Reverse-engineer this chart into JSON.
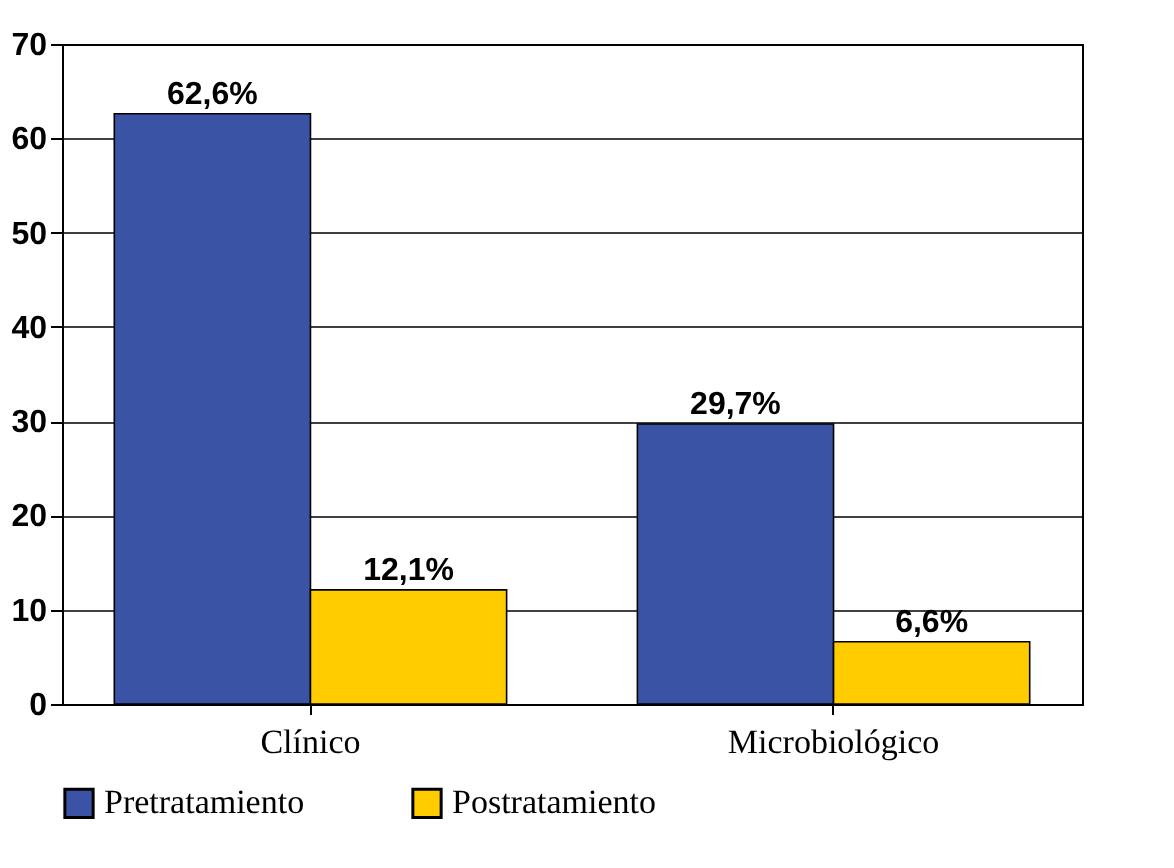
{
  "chart_data": {
    "type": "bar",
    "categories": [
      "Clínico",
      "Microbiológico"
    ],
    "series": [
      {
        "name": "Pretratamiento",
        "color": "#3a53a4",
        "values": [
          62.6,
          29.7
        ],
        "value_labels": [
          "62,6%",
          "29,7%"
        ]
      },
      {
        "name": "Postratamiento",
        "color": "#ffcc00",
        "values": [
          12.1,
          6.6
        ],
        "value_labels": [
          "12,1%",
          "6,6%"
        ]
      }
    ],
    "ylim": [
      0,
      70
    ],
    "yticks": [
      0,
      10,
      20,
      30,
      40,
      50,
      60,
      70
    ],
    "grid": "y",
    "legend": "bottom"
  }
}
